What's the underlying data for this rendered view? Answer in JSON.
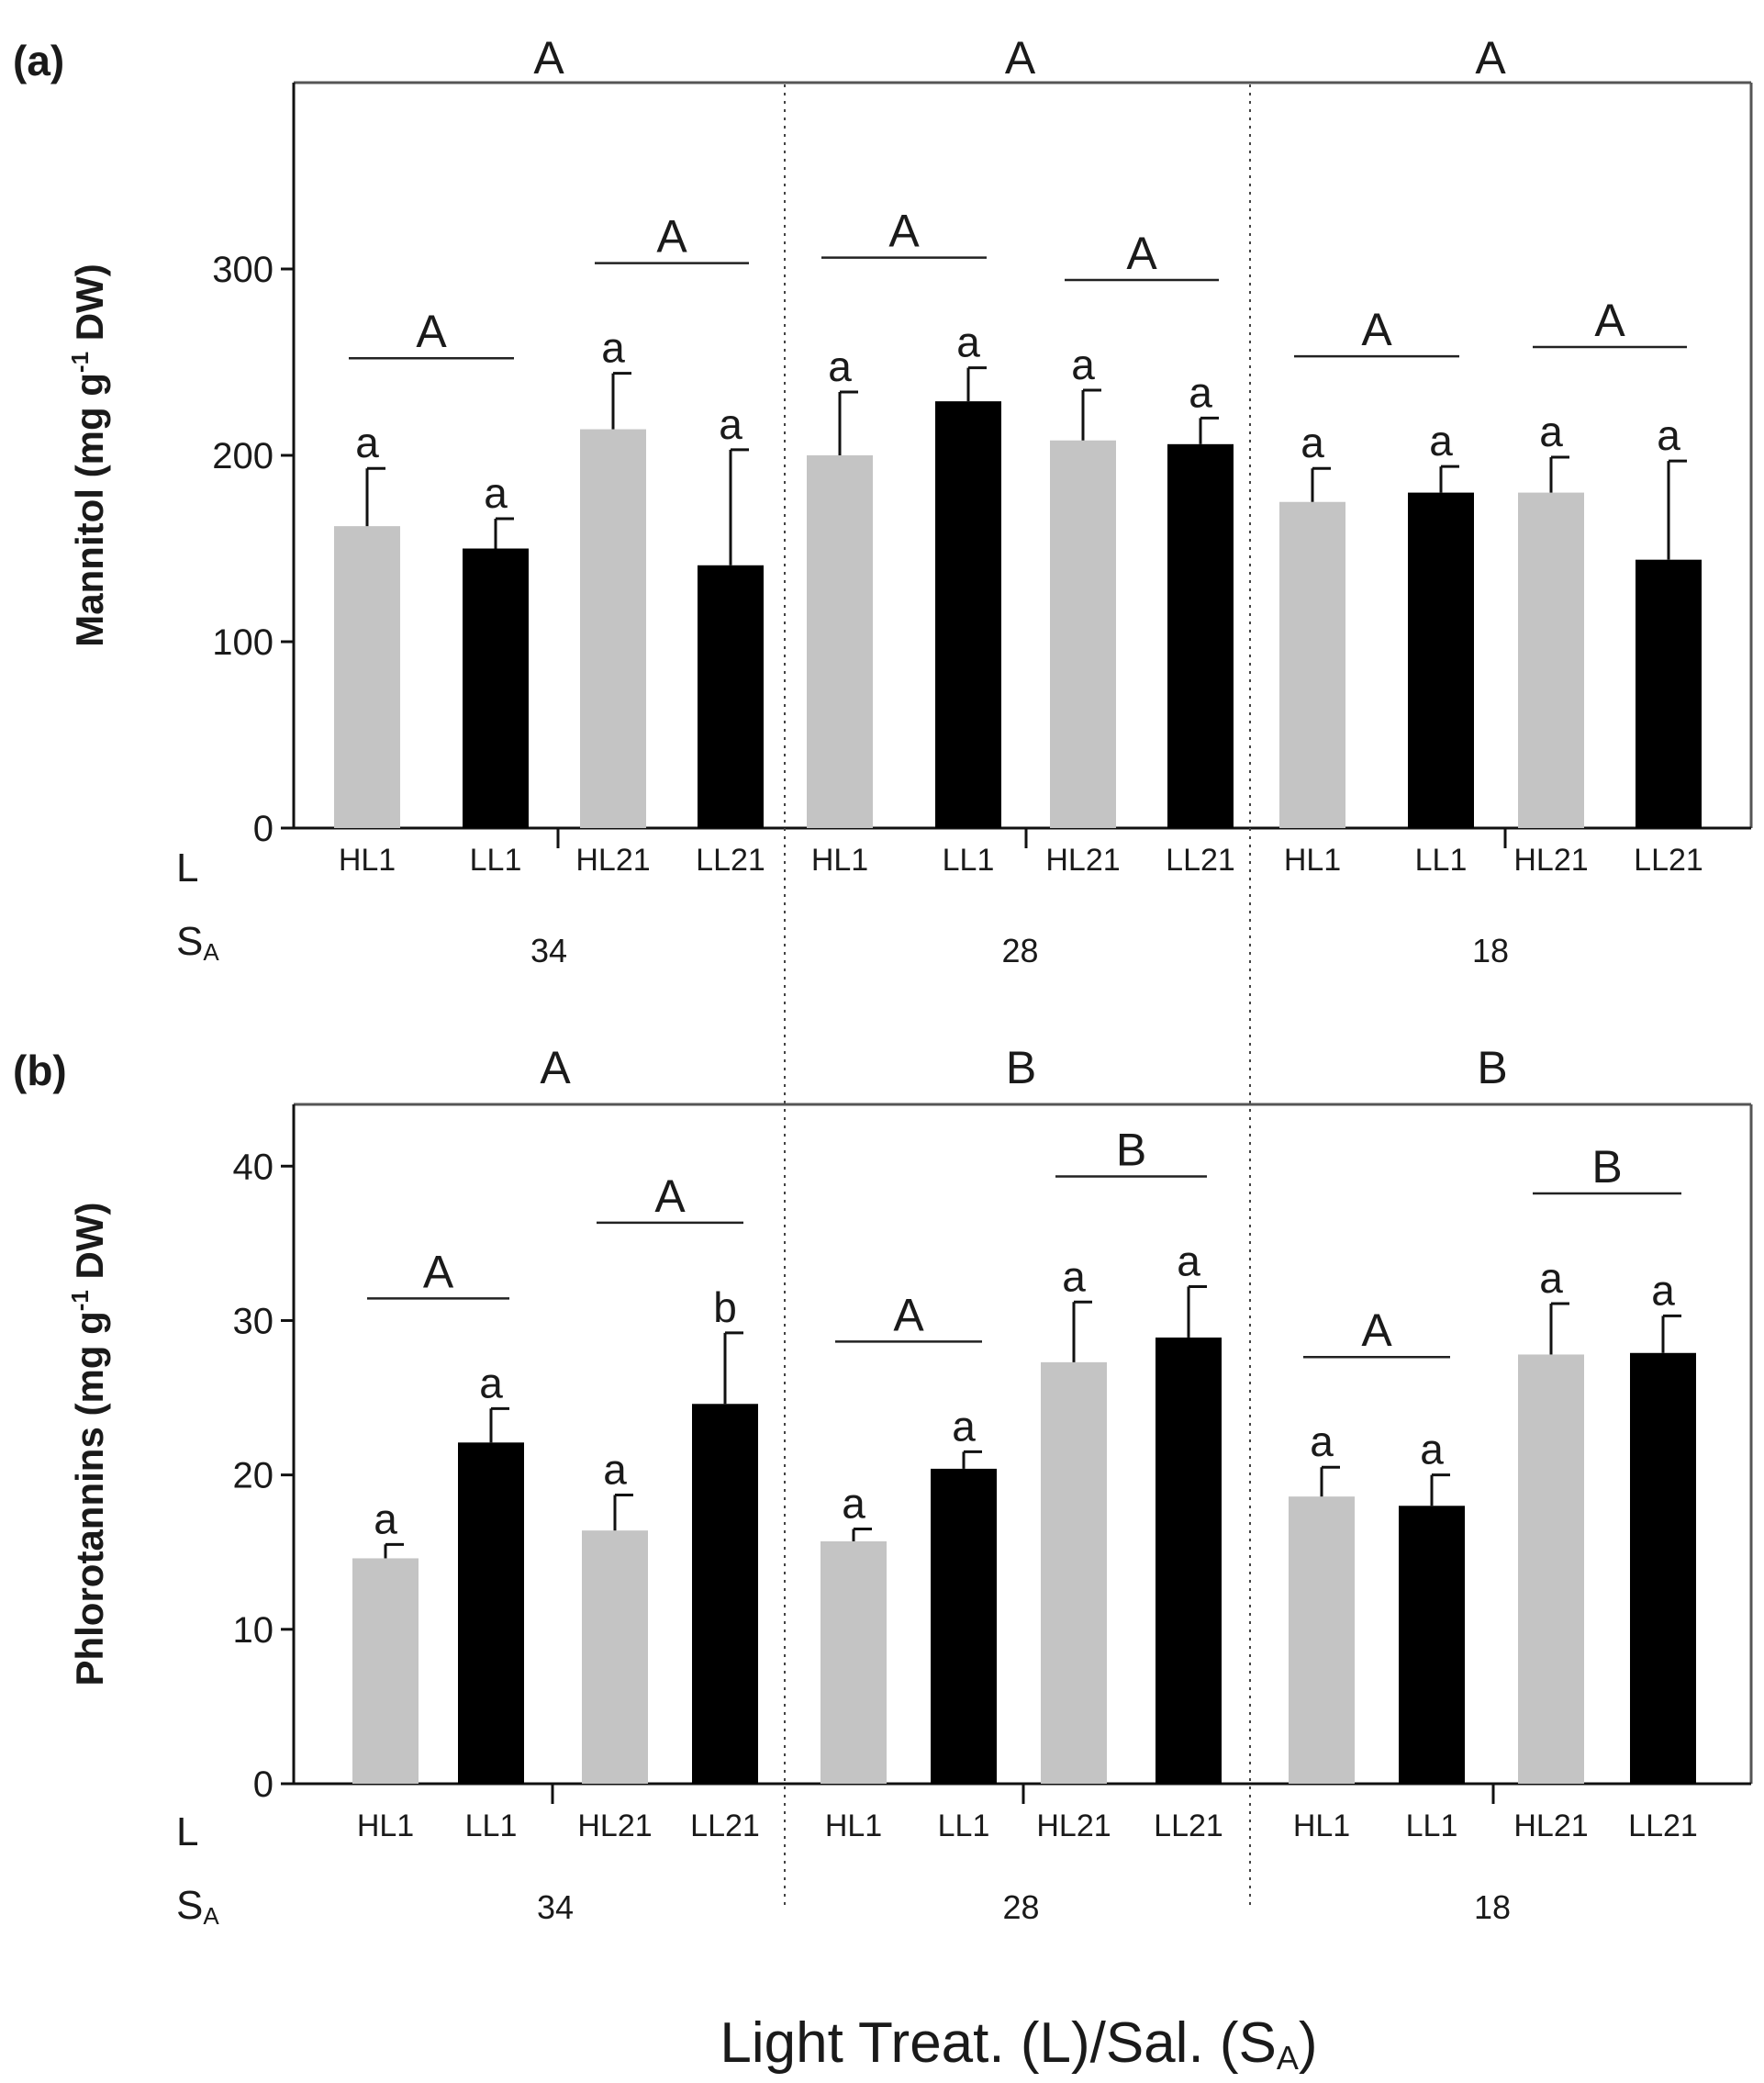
{
  "colors": {
    "hl": "#c4c4c4",
    "ll": "#000000",
    "frame": "#555555",
    "text": "#1a1a1a"
  },
  "xlabel": "Light Treat. (L)/Sal. (S",
  "xlabel_sub": "A",
  "xlabel_close": ")",
  "row_label_l": "L",
  "row_label_s": "S",
  "row_label_s_sub": "A",
  "chart_data": [
    {
      "type": "bar",
      "panel_label": "(a)",
      "ylabel_prefix": "Mannitol (mg g",
      "ylabel_sup": "-1",
      "ylabel_suffix": " DW)",
      "ylim": [
        0,
        400
      ],
      "yticks": [
        0,
        100,
        200,
        300
      ],
      "ytick_labels": [
        "0",
        "100",
        "200",
        "300"
      ],
      "groups": [
        {
          "salinity": "34",
          "top_letter": "A",
          "pair_letters": [
            "A",
            "A"
          ],
          "categories": [
            "HL1",
            "LL1",
            "HL21",
            "LL21"
          ],
          "values": [
            162,
            150,
            214,
            141
          ],
          "errors": [
            31,
            16,
            30,
            62
          ],
          "letters": [
            "a",
            "a",
            "a",
            "a"
          ]
        },
        {
          "salinity": "28",
          "top_letter": "A",
          "pair_letters": [
            "A",
            "A"
          ],
          "categories": [
            "HL1",
            "LL1",
            "HL21",
            "LL21"
          ],
          "values": [
            200,
            229,
            208,
            206
          ],
          "errors": [
            34,
            18,
            27,
            14
          ],
          "letters": [
            "a",
            "a",
            "a",
            "a"
          ]
        },
        {
          "salinity": "18",
          "top_letter": "A",
          "pair_letters": [
            "A",
            "A"
          ],
          "categories": [
            "HL1",
            "LL1",
            "HL21",
            "LL21"
          ],
          "values": [
            175,
            180,
            180,
            144
          ],
          "errors": [
            18,
            14,
            19,
            53
          ],
          "letters": [
            "a",
            "a",
            "a",
            "a"
          ]
        }
      ]
    },
    {
      "type": "bar",
      "panel_label": "(b)",
      "ylabel_prefix": "Phlorotannins (mg g",
      "ylabel_sup": "-1",
      "ylabel_suffix": " DW)",
      "ylim": [
        0,
        44
      ],
      "yticks": [
        0,
        10,
        20,
        30,
        40
      ],
      "ytick_labels": [
        "0",
        "10",
        "20",
        "30",
        "40"
      ],
      "groups": [
        {
          "salinity": "34",
          "top_letter": "A",
          "pair_letters": [
            "A",
            "A"
          ],
          "categories": [
            "HL1",
            "LL1",
            "HL21",
            "LL21"
          ],
          "values": [
            14.6,
            22.1,
            16.4,
            24.6
          ],
          "errors": [
            0.9,
            2.2,
            2.3,
            4.6
          ],
          "letters": [
            "a",
            "a",
            "a",
            "b"
          ]
        },
        {
          "salinity": "28",
          "top_letter": "B",
          "pair_letters": [
            "A",
            "B"
          ],
          "categories": [
            "HL1",
            "LL1",
            "HL21",
            "LL21"
          ],
          "values": [
            15.7,
            20.4,
            27.3,
            28.9
          ],
          "errors": [
            0.8,
            1.1,
            3.9,
            3.3
          ],
          "letters": [
            "a",
            "a",
            "a",
            "a"
          ]
        },
        {
          "salinity": "18",
          "top_letter": "B",
          "pair_letters": [
            "A",
            "B"
          ],
          "categories": [
            "HL1",
            "LL1",
            "HL21",
            "LL21"
          ],
          "values": [
            18.6,
            18.0,
            27.8,
            27.9
          ],
          "errors": [
            1.9,
            2.0,
            3.3,
            2.4
          ],
          "letters": [
            "a",
            "a",
            "a",
            "a"
          ]
        }
      ]
    }
  ]
}
